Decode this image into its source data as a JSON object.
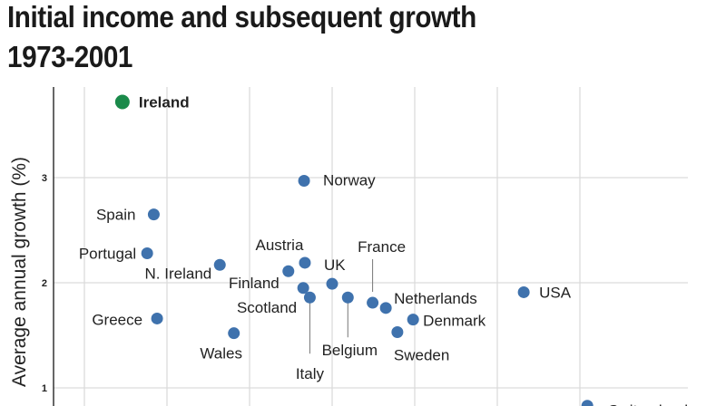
{
  "title_line1": "Initial income and subsequent growth",
  "title_line2": "1973-2001",
  "chart_data": {
    "type": "scatter",
    "title": "Initial income and subsequent growth 1973-2001",
    "xlabel": "",
    "ylabel": "Average annual growth (%)",
    "ylim": [
      0.83,
      3.85
    ],
    "xlim": [
      0.63,
      8.3
    ],
    "yticks": [
      "1",
      "2",
      "3"
    ],
    "grid": true,
    "colors": {
      "highlight": "#1a8a4a",
      "default": "#3f72ad",
      "grid": "#dcdcdc"
    },
    "points": [
      {
        "label": "Ireland",
        "x": 1.46,
        "y": 3.72,
        "highlight": true
      },
      {
        "label": "Norway",
        "x": 3.66,
        "y": 2.97
      },
      {
        "label": "Spain",
        "x": 1.84,
        "y": 2.65
      },
      {
        "label": "Portugal",
        "x": 1.76,
        "y": 2.28
      },
      {
        "label": "N. Ireland",
        "x": 2.64,
        "y": 2.17
      },
      {
        "label": "Greece",
        "x": 1.88,
        "y": 1.66
      },
      {
        "label": "Wales",
        "x": 2.81,
        "y": 1.52
      },
      {
        "label": "Austria",
        "x": 3.67,
        "y": 2.19
      },
      {
        "label": "Finland",
        "x": 3.47,
        "y": 2.11
      },
      {
        "label": "UK",
        "x": 4.0,
        "y": 1.99
      },
      {
        "label": "Scotland",
        "x": 3.65,
        "y": 1.95
      },
      {
        "label": "Italy",
        "x": 3.73,
        "y": 1.86
      },
      {
        "label": "Belgium",
        "x": 4.19,
        "y": 1.86
      },
      {
        "label": "France",
        "x": 4.49,
        "y": 1.81
      },
      {
        "label": "Netherlands",
        "x": 4.65,
        "y": 1.76
      },
      {
        "label": "Sweden",
        "x": 4.79,
        "y": 1.53
      },
      {
        "label": "Denmark",
        "x": 4.98,
        "y": 1.65
      },
      {
        "label": "USA",
        "x": 6.32,
        "y": 1.91
      },
      {
        "label": "Switzerland",
        "x": 7.09,
        "y": 0.83
      }
    ]
  }
}
